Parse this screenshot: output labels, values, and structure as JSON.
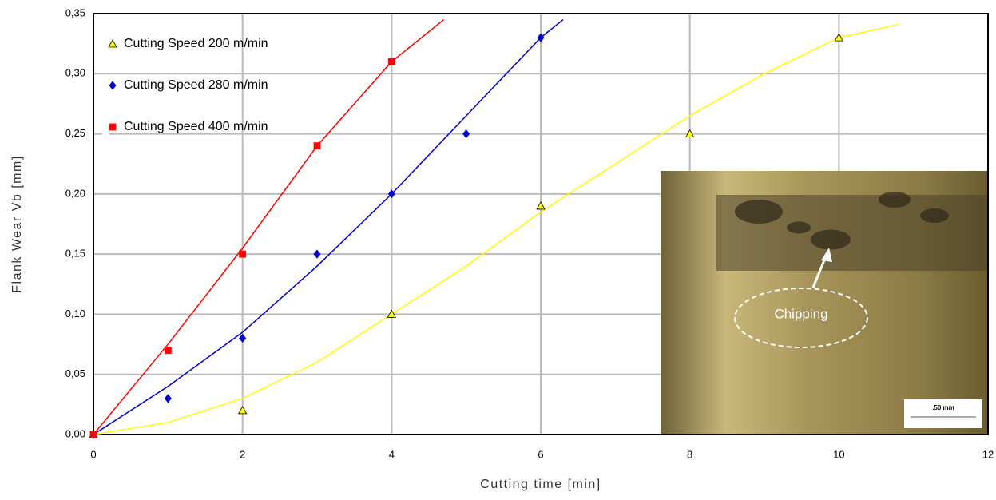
{
  "chart_data": {
    "type": "scatter",
    "x_label": "Cutting time [min]",
    "y_label": "Flank Wear Vb [mm]",
    "xlim": [
      0,
      12
    ],
    "xticks": [
      0,
      2,
      4,
      6,
      8,
      10,
      12
    ],
    "ylim": [
      0,
      0.35
    ],
    "yticks": [
      {
        "value": 0,
        "label": "0,00"
      },
      {
        "value": 0.05,
        "label": "0,05"
      },
      {
        "value": 0.1,
        "label": "0,10"
      },
      {
        "value": 0.15,
        "label": "0,15"
      },
      {
        "value": 0.2,
        "label": "0,20"
      },
      {
        "value": 0.25,
        "label": "0,25"
      },
      {
        "value": 0.3,
        "label": "0,30"
      },
      {
        "value": 0.35,
        "label": "0,35"
      }
    ],
    "grid": true,
    "legend": "top-left",
    "series": [
      {
        "name": "Cutting Speed 200 m/min",
        "color": "#ffff00",
        "marker": "triangle",
        "x": [
          0,
          2,
          4,
          6,
          8,
          10
        ],
        "values": [
          0,
          0.02,
          0.1,
          0.19,
          0.25,
          0.33
        ],
        "trendline": {
          "x": [
            0,
            1,
            2,
            3,
            4,
            5,
            6,
            7,
            8,
            9,
            10,
            10.8
          ],
          "values": [
            0,
            0.01,
            0.03,
            0.06,
            0.1,
            0.14,
            0.185,
            0.225,
            0.265,
            0.3,
            0.33,
            0.341
          ]
        }
      },
      {
        "name": "Cutting Speed 280 m/min",
        "color": "#0000cc",
        "marker": "diamond",
        "x": [
          0,
          1,
          2,
          3,
          4,
          5,
          6
        ],
        "values": [
          0,
          0.03,
          0.08,
          0.15,
          0.2,
          0.25,
          0.33
        ],
        "trendline": {
          "x": [
            0,
            1,
            2,
            3,
            4,
            5,
            6,
            6.3
          ],
          "values": [
            0,
            0.04,
            0.085,
            0.14,
            0.2,
            0.265,
            0.33,
            0.345
          ]
        }
      },
      {
        "name": "Cutting Speed 400 m/min",
        "color": "#ff0000",
        "marker": "square",
        "x": [
          0,
          1,
          2,
          3,
          4
        ],
        "values": [
          0,
          0.07,
          0.15,
          0.24,
          0.31
        ],
        "trendline": {
          "x": [
            0,
            1,
            2,
            3,
            4,
            4.7
          ],
          "values": [
            0,
            0.075,
            0.155,
            0.24,
            0.31,
            0.345
          ]
        }
      }
    ],
    "inset": {
      "annotation": "Chipping",
      "scale_label": ".50 mm"
    }
  }
}
